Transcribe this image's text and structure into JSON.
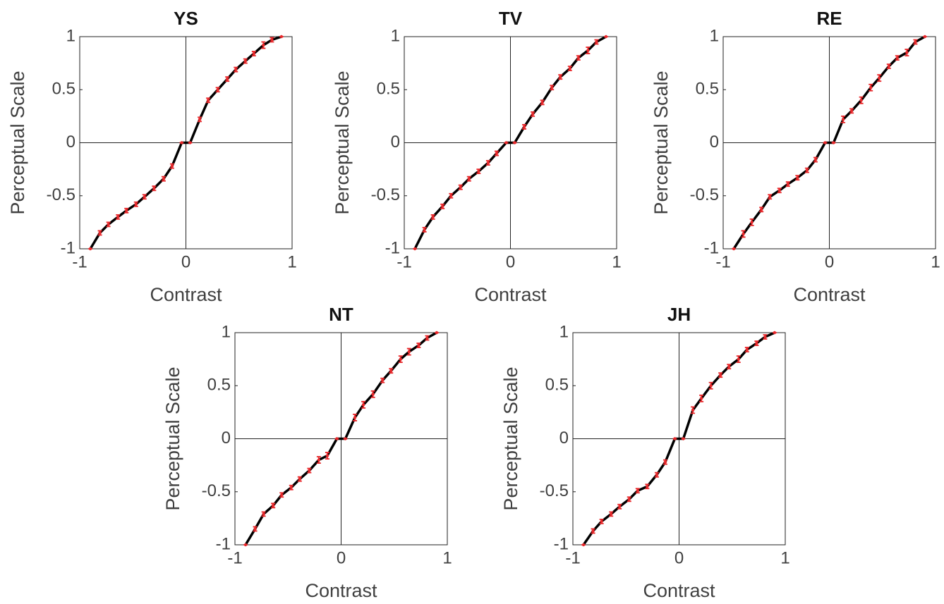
{
  "chart_data": [
    {
      "type": "line",
      "title": "YS",
      "xlabel": "Contrast",
      "ylabel": "Perceptual Scale",
      "x": [
        -0.9,
        -0.81,
        -0.73,
        -0.64,
        -0.56,
        -0.47,
        -0.39,
        -0.3,
        -0.21,
        -0.13,
        -0.04,
        0.04,
        0.13,
        0.21,
        0.3,
        0.39,
        0.47,
        0.56,
        0.64,
        0.73,
        0.81,
        0.9
      ],
      "series": [
        {
          "color": "#e8282b",
          "line_color": "#000000",
          "values": [
            -1,
            -0.85,
            -0.77,
            -0.7,
            -0.64,
            -0.58,
            -0.51,
            -0.43,
            -0.34,
            -0.22,
            0,
            0,
            0.22,
            0.4,
            0.5,
            0.6,
            0.69,
            0.77,
            0.84,
            0.92,
            0.97,
            1
          ],
          "errors": [
            0,
            0.02,
            0.02,
            0.02,
            0.02,
            0.02,
            0.02,
            0.02,
            0.02,
            0.02,
            0,
            0,
            0.02,
            0.02,
            0.02,
            0.02,
            0.02,
            0.02,
            0.02,
            0.03,
            0.02,
            0
          ]
        }
      ],
      "xlim": [
        -1,
        1
      ],
      "xticks": [
        -1,
        0,
        1
      ],
      "ylim": [
        -1,
        1
      ],
      "yticks": [
        -1,
        -0.5,
        0,
        0.5,
        1
      ],
      "zero_lines": true
    },
    {
      "type": "line",
      "title": "TV",
      "xlabel": "Contrast",
      "ylabel": "Perceptual Scale",
      "x": [
        -0.9,
        -0.81,
        -0.73,
        -0.64,
        -0.56,
        -0.47,
        -0.39,
        -0.3,
        -0.21,
        -0.13,
        -0.04,
        0.04,
        0.13,
        0.21,
        0.3,
        0.39,
        0.47,
        0.56,
        0.64,
        0.73,
        0.81,
        0.9
      ],
      "series": [
        {
          "color": "#e8282b",
          "line_color": "#000000",
          "values": [
            -1,
            -0.82,
            -0.7,
            -0.6,
            -0.5,
            -0.42,
            -0.34,
            -0.27,
            -0.19,
            -0.1,
            0,
            0,
            0.15,
            0.27,
            0.38,
            0.52,
            0.62,
            0.7,
            0.8,
            0.87,
            0.95,
            1
          ],
          "errors": [
            0,
            0.02,
            0.02,
            0.02,
            0.02,
            0.02,
            0.02,
            0.02,
            0.02,
            0.02,
            0,
            0,
            0.02,
            0.02,
            0.02,
            0.02,
            0.02,
            0.02,
            0.02,
            0.03,
            0.02,
            0
          ]
        }
      ],
      "xlim": [
        -1,
        1
      ],
      "xticks": [
        -1,
        0,
        1
      ],
      "ylim": [
        -1,
        1
      ],
      "yticks": [
        -1,
        -0.5,
        0,
        0.5,
        1
      ],
      "zero_lines": true
    },
    {
      "type": "line",
      "title": "RE",
      "xlabel": "Contrast",
      "ylabel": "Perceptual Scale",
      "x": [
        -0.9,
        -0.81,
        -0.73,
        -0.64,
        -0.56,
        -0.47,
        -0.39,
        -0.3,
        -0.21,
        -0.13,
        -0.04,
        0.04,
        0.13,
        0.21,
        0.3,
        0.39,
        0.47,
        0.56,
        0.64,
        0.73,
        0.81,
        0.9
      ],
      "series": [
        {
          "color": "#e8282b",
          "line_color": "#000000",
          "values": [
            -1,
            -0.86,
            -0.75,
            -0.63,
            -0.51,
            -0.45,
            -0.39,
            -0.33,
            -0.26,
            -0.16,
            0,
            0,
            0.22,
            0.3,
            0.4,
            0.52,
            0.61,
            0.72,
            0.8,
            0.85,
            0.95,
            1
          ],
          "errors": [
            0,
            0.03,
            0.03,
            0.02,
            0.02,
            0.02,
            0.02,
            0.02,
            0.02,
            0.02,
            0,
            0,
            0.03,
            0.02,
            0.03,
            0.03,
            0.03,
            0.02,
            0.02,
            0.03,
            0.02,
            0
          ]
        }
      ],
      "xlim": [
        -1,
        1
      ],
      "xticks": [
        -1,
        0,
        1
      ],
      "ylim": [
        -1,
        1
      ],
      "yticks": [
        -1,
        -0.5,
        0,
        0.5,
        1
      ],
      "zero_lines": true
    },
    {
      "type": "line",
      "title": "NT",
      "xlabel": "Contrast",
      "ylabel": "Perceptual Scale",
      "x": [
        -0.9,
        -0.81,
        -0.73,
        -0.64,
        -0.56,
        -0.47,
        -0.39,
        -0.3,
        -0.21,
        -0.13,
        -0.04,
        0.04,
        0.13,
        0.21,
        0.3,
        0.39,
        0.47,
        0.56,
        0.64,
        0.73,
        0.81,
        0.9
      ],
      "series": [
        {
          "color": "#e8282b",
          "line_color": "#000000",
          "values": [
            -1,
            -0.85,
            -0.71,
            -0.63,
            -0.53,
            -0.46,
            -0.38,
            -0.3,
            -0.2,
            -0.16,
            0,
            0,
            0.2,
            0.32,
            0.42,
            0.55,
            0.64,
            0.75,
            0.82,
            0.88,
            0.95,
            1
          ],
          "errors": [
            0,
            0.02,
            0.02,
            0.02,
            0.02,
            0.02,
            0.02,
            0.02,
            0.03,
            0.03,
            0,
            0,
            0.03,
            0.03,
            0.03,
            0.02,
            0.02,
            0.03,
            0.03,
            0.02,
            0.02,
            0
          ]
        }
      ],
      "xlim": [
        -1,
        1
      ],
      "xticks": [
        -1,
        0,
        1
      ],
      "ylim": [
        -1,
        1
      ],
      "yticks": [
        -1,
        -0.5,
        0,
        0.5,
        1
      ],
      "zero_lines": true
    },
    {
      "type": "line",
      "title": "JH",
      "xlabel": "Contrast",
      "ylabel": "Perceptual Scale",
      "x": [
        -0.9,
        -0.81,
        -0.73,
        -0.64,
        -0.56,
        -0.47,
        -0.39,
        -0.3,
        -0.21,
        -0.13,
        -0.04,
        0.04,
        0.13,
        0.21,
        0.3,
        0.39,
        0.47,
        0.56,
        0.64,
        0.73,
        0.81,
        0.9
      ],
      "series": [
        {
          "color": "#e8282b",
          "line_color": "#000000",
          "values": [
            -1,
            -0.87,
            -0.78,
            -0.71,
            -0.64,
            -0.57,
            -0.49,
            -0.45,
            -0.34,
            -0.22,
            0,
            0,
            0.27,
            0.38,
            0.5,
            0.6,
            0.68,
            0.75,
            0.84,
            0.9,
            0.96,
            1
          ],
          "errors": [
            0,
            0.02,
            0.02,
            0.02,
            0.02,
            0.02,
            0.02,
            0.02,
            0.02,
            0.02,
            0,
            0,
            0.03,
            0.03,
            0.03,
            0.02,
            0.02,
            0.03,
            0.02,
            0.02,
            0.02,
            0
          ]
        }
      ],
      "xlim": [
        -1,
        1
      ],
      "xticks": [
        -1,
        0,
        1
      ],
      "ylim": [
        -1,
        1
      ],
      "yticks": [
        -1,
        -0.5,
        0,
        0.5,
        1
      ],
      "zero_lines": true
    }
  ]
}
